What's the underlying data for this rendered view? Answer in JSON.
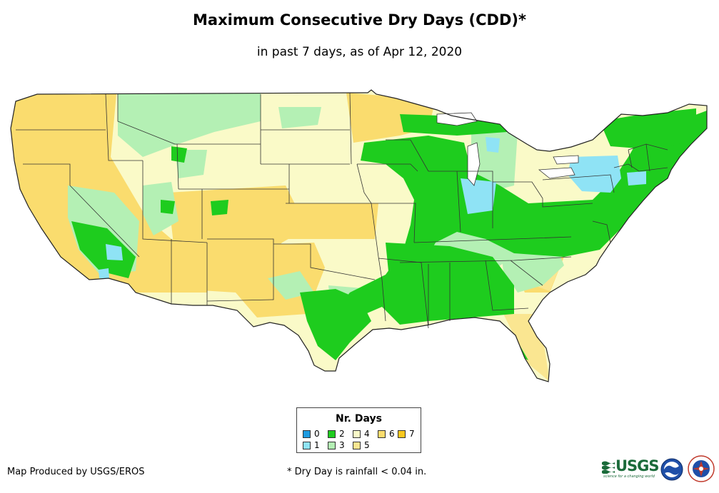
{
  "header": {
    "title": "Maximum Consecutive Dry Days (CDD)*",
    "subtitle": "in past 7 days, as of Apr 12, 2020"
  },
  "legend": {
    "title": "Nr. Days",
    "items": [
      {
        "label": "0",
        "color": "#1e9be0"
      },
      {
        "label": "1",
        "color": "#8fe3f5"
      },
      {
        "label": "2",
        "color": "#1ecc1e"
      },
      {
        "label": "3",
        "color": "#b4f0b4"
      },
      {
        "label": "4",
        "color": "#fafac8"
      },
      {
        "label": "5",
        "color": "#fae691"
      },
      {
        "label": "6",
        "color": "#fadc6e"
      },
      {
        "label": "7",
        "color": "#fac81e"
      }
    ]
  },
  "footer": {
    "credit": "Map Produced by USGS/EROS",
    "note": "* Dry Day is rainfall < 0.04 in."
  },
  "logos": {
    "usgs": "USGS",
    "usgs_tagline": "science for a changing world",
    "noaa": "noaa-logo",
    "nws": "nws-logo"
  }
}
